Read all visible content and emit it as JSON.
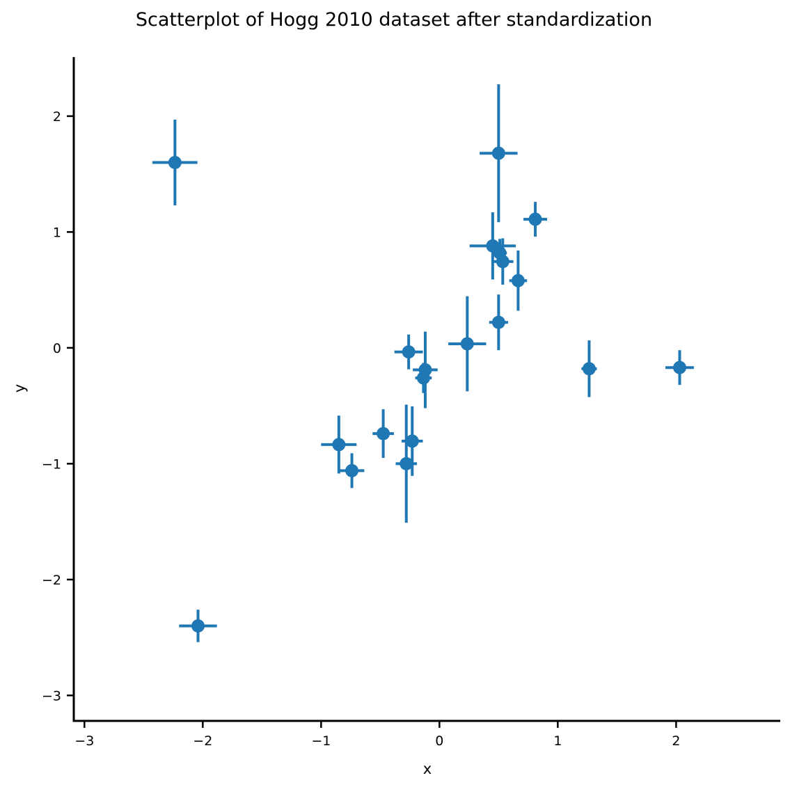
{
  "chart_data": {
    "type": "scatter",
    "title": "Scatterplot of Hogg 2010 dataset after standardization",
    "xlabel": "x",
    "ylabel": "y",
    "xlim": [
      -3.09,
      2.88
    ],
    "ylim": [
      -3.22,
      2.51
    ],
    "xticks": [
      -3,
      -2,
      -1,
      0,
      1,
      2
    ],
    "yticks": [
      -3,
      -2,
      -1,
      0,
      1,
      2
    ],
    "xtick_labels": [
      "−3",
      "−2",
      "−1",
      "0",
      "1",
      "2"
    ],
    "ytick_labels": [
      "−3",
      "−2",
      "−1",
      "0",
      "1",
      "2"
    ],
    "grid": false,
    "color": "#1f77b4",
    "points": [
      {
        "x": -2.235,
        "y": 1.6,
        "xerr": 0.19,
        "yerr": 0.37
      },
      {
        "x": -2.04,
        "y": -2.4,
        "xerr": 0.16,
        "yerr": 0.14
      },
      {
        "x": 0.5,
        "y": 1.68,
        "xerr": 0.16,
        "yerr": 0.595
      },
      {
        "x": 0.81,
        "y": 1.11,
        "xerr": 0.1,
        "yerr": 0.15
      },
      {
        "x": 0.45,
        "y": 0.88,
        "xerr": 0.195,
        "yerr": 0.29
      },
      {
        "x": 0.51,
        "y": 0.82,
        "xerr": 0.06,
        "yerr": 0.12
      },
      {
        "x": 0.535,
        "y": 0.745,
        "xerr": 0.09,
        "yerr": 0.2
      },
      {
        "x": 0.665,
        "y": 0.58,
        "xerr": 0.075,
        "yerr": 0.26
      },
      {
        "x": 0.5,
        "y": 0.22,
        "xerr": 0.08,
        "yerr": 0.24
      },
      {
        "x": 0.235,
        "y": 0.035,
        "xerr": 0.16,
        "yerr": 0.41
      },
      {
        "x": -0.26,
        "y": -0.035,
        "xerr": 0.12,
        "yerr": 0.15
      },
      {
        "x": -0.12,
        "y": -0.19,
        "xerr": 0.105,
        "yerr": 0.33
      },
      {
        "x": -0.135,
        "y": -0.26,
        "xerr": 0.07,
        "yerr": 0.13
      },
      {
        "x": 1.265,
        "y": -0.18,
        "xerr": 0.065,
        "yerr": 0.245
      },
      {
        "x": 2.03,
        "y": -0.17,
        "xerr": 0.12,
        "yerr": 0.15
      },
      {
        "x": -0.85,
        "y": -0.835,
        "xerr": 0.15,
        "yerr": 0.25
      },
      {
        "x": -0.74,
        "y": -1.06,
        "xerr": 0.105,
        "yerr": 0.15
      },
      {
        "x": -0.475,
        "y": -0.74,
        "xerr": 0.09,
        "yerr": 0.21
      },
      {
        "x": -0.23,
        "y": -0.805,
        "xerr": 0.09,
        "yerr": 0.3
      },
      {
        "x": -0.28,
        "y": -1.0,
        "xerr": 0.09,
        "yerr": 0.51
      }
    ]
  }
}
